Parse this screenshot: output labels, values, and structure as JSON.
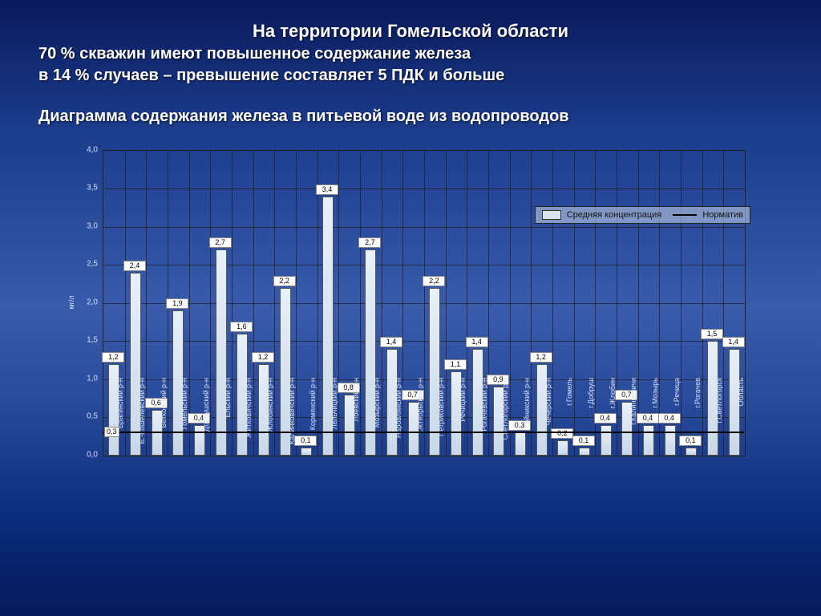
{
  "title": {
    "line1": "На территории Гомельской области",
    "line2": "70 % скважин  имеют повышенное содержание железа",
    "line3": "в 14 % случаев – превышение  составляет 5 ПДК и больше",
    "line4": "Диаграмма  содержания железа в питьевой воде из водопроводов"
  },
  "chart": {
    "type": "bar",
    "ylabel": "мг/л",
    "ymin": 0.0,
    "ymax": 4.0,
    "ytick_step": 0.5,
    "yticks": [
      "0,0",
      "0,5",
      "1,0",
      "1,5",
      "2,0",
      "2,5",
      "3,0",
      "3,5",
      "4,0"
    ],
    "bar_fill_top": "#e8f0f8",
    "bar_fill_bottom": "#c8d8e8",
    "bar_border": "#555555",
    "grid_color": "#1e1e1e",
    "background": "transparent",
    "tick_color": "#d0e0ff",
    "legend": {
      "series": "Средняя концентрация",
      "norm": "Норматив"
    },
    "normative": {
      "value": 0.3,
      "label": "0,3",
      "line_color": "#000000"
    },
    "categories": [
      "Брагинский р-н",
      "Б.-Кошелевский р-н",
      "Ветковский р-н",
      "Гомельский р-н",
      "Добрушский р-н",
      "Ельский р-н",
      "Житковичский р-н",
      "Жлобинский р-н",
      "Калинковичский р-н",
      "Кормянский р-н",
      "Лельчицкий р-н",
      "Лоевский р-н",
      "Мозырский р-н",
      "Наровлянский р-н",
      "Октябрьский р-н",
      "Петриковский р-н",
      "Речицкий р-н",
      "Рогачевский р-н",
      "Светлогорский р-н",
      "Хойникский р-н",
      "Чечерский р-н",
      "г.Гомель",
      "г.Добруш",
      "г.Жлобин",
      "г.Калинковичи",
      "г.Мозырь",
      "г.Речица",
      "г.Рогачев",
      "г.Светлогорск",
      "Область"
    ],
    "values": [
      1.2,
      2.4,
      0.6,
      1.9,
      0.4,
      2.7,
      1.6,
      1.2,
      2.2,
      0.1,
      3.4,
      0.8,
      2.7,
      1.4,
      0.7,
      2.2,
      1.1,
      1.4,
      0.9,
      0.3,
      1.2,
      0.2,
      0.1,
      0.4,
      0.7,
      0.4,
      0.4,
      0.1,
      1.5,
      1.4
    ],
    "value_labels": [
      "1,2",
      "2,4",
      "0,6",
      "1,9",
      "0,4",
      "2,7",
      "1,6",
      "1,2",
      "2,2",
      "0,1",
      "3,4",
      "0,8",
      "2,7",
      "1,4",
      "0,7",
      "2,2",
      "1,1",
      "1,4",
      "0,9",
      "0,3",
      "1,2",
      "0,2",
      "0,1",
      "0,4",
      "0,7",
      "0,4",
      "0,4",
      "0,1",
      "1,5",
      "1,4"
    ]
  }
}
